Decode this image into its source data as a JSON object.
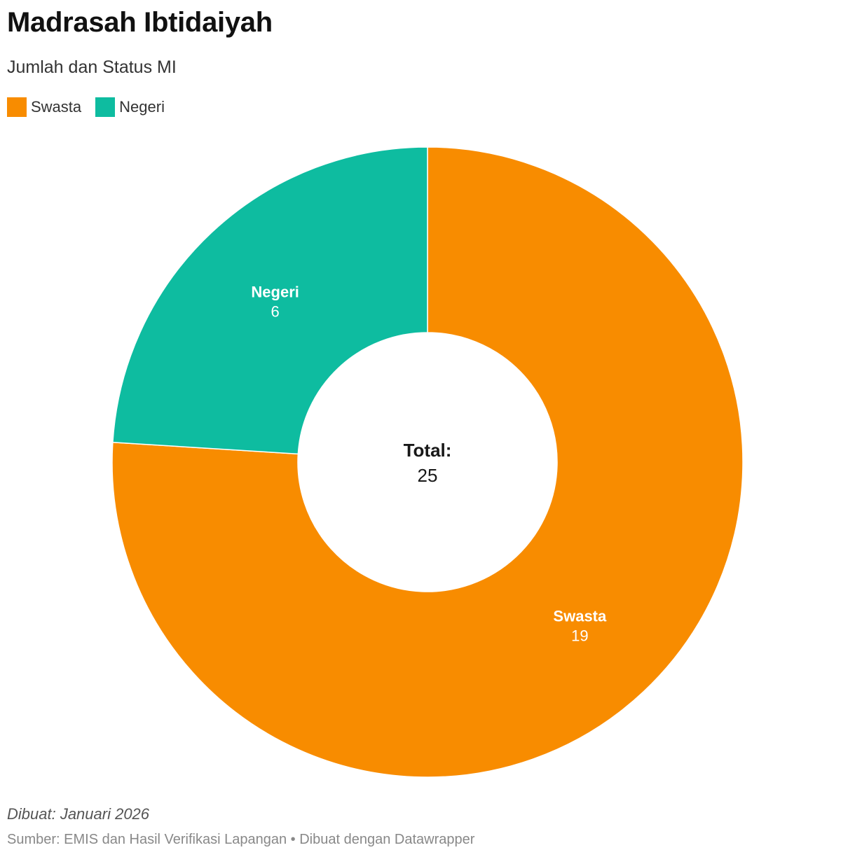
{
  "header": {
    "title": "Madrasah Ibtidaiyah",
    "subtitle": "Jumlah dan Status MI"
  },
  "legend": [
    {
      "label": "Swasta",
      "color": "#f88c00"
    },
    {
      "label": "Negeri",
      "color": "#0ebca0"
    }
  ],
  "chart_data": {
    "type": "pie",
    "variant": "donut",
    "title": "Madrasah Ibtidaiyah",
    "subtitle": "Jumlah dan Status MI",
    "categories": [
      "Swasta",
      "Negeri"
    ],
    "values": [
      19,
      6
    ],
    "colors": [
      "#f88c00",
      "#0ebca0"
    ],
    "center_label": "Total:",
    "center_value": "25",
    "legend_position": "top-left"
  },
  "footer": {
    "note": "Dibuat: Januari 2026",
    "source": "Sumber: EMIS dan Hasil Verifikasi Lapangan • Dibuat dengan Datawrapper"
  }
}
